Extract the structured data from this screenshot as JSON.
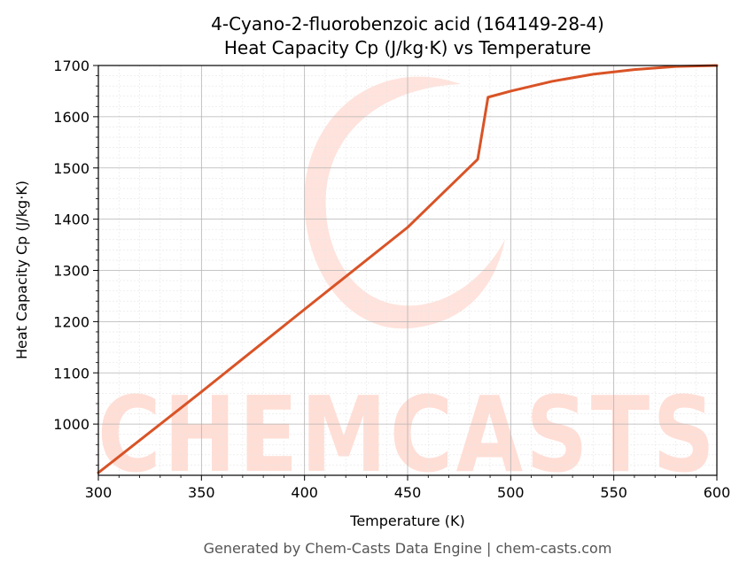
{
  "chart_data": {
    "type": "line",
    "title": "4-Cyano-2-fluorobenzoic acid (164149-28-4)",
    "subtitle": "Heat Capacity Cp (J/kg·K) vs Temperature",
    "xlabel": "Temperature (K)",
    "ylabel": "Heat Capacity Cp (J/kg·K)",
    "xlim": [
      300,
      600
    ],
    "ylim": [
      900,
      1700
    ],
    "xticks": [
      300,
      350,
      400,
      450,
      500,
      550,
      600
    ],
    "yticks": [
      1000,
      1100,
      1200,
      1300,
      1400,
      1500,
      1600,
      1700
    ],
    "grid": true,
    "series": [
      {
        "color": "#d95326",
        "x": [
          300,
          350,
          400,
          450,
          484,
          489,
          500,
          520,
          540,
          560,
          580,
          600
        ],
        "y": [
          905,
          1063,
          1224,
          1384,
          1517,
          1638,
          1650,
          1669,
          1683,
          1692,
          1698,
          1700
        ]
      }
    ]
  },
  "watermark": {
    "text": "CHEMCASTS",
    "color": "#ffded6"
  },
  "footer": "Generated by Chem-Casts Data Engine | chem-casts.com"
}
